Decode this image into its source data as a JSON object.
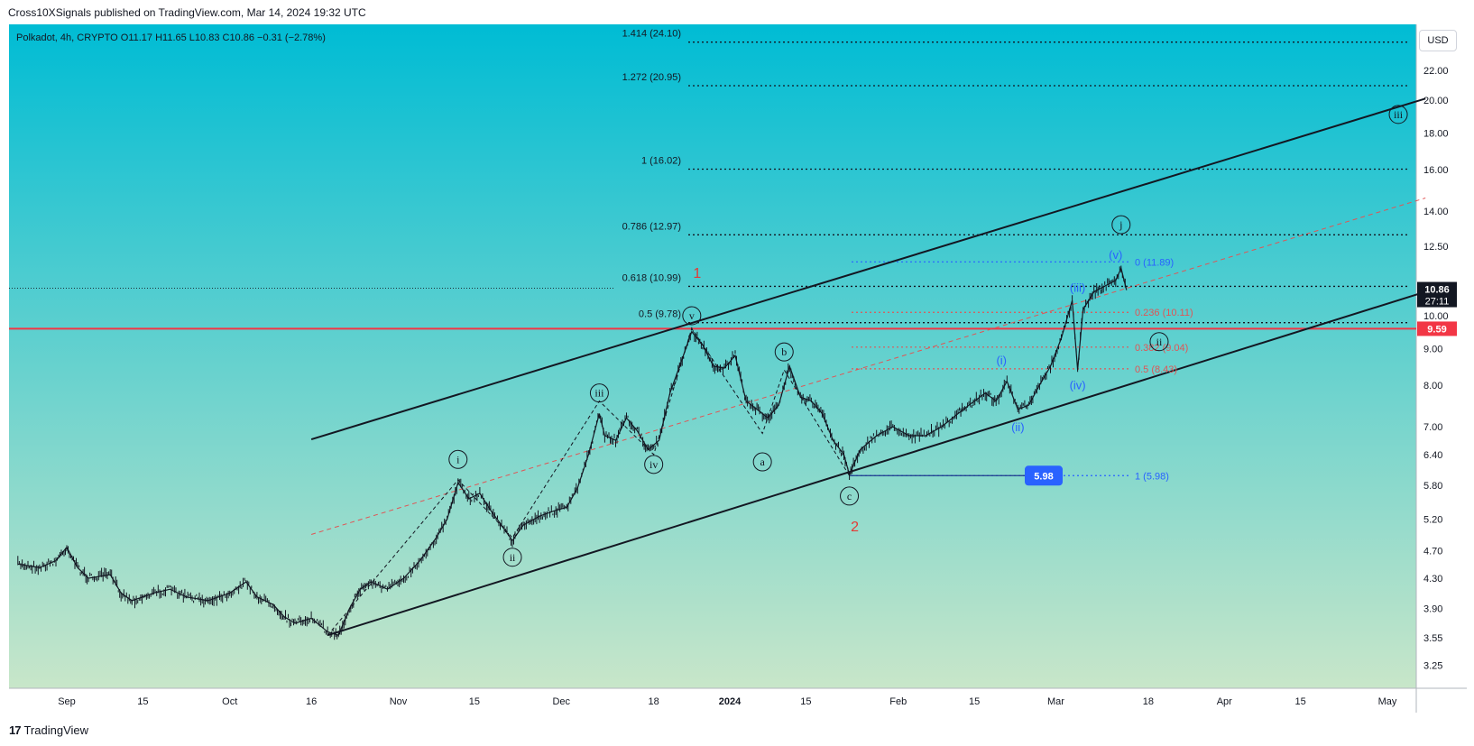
{
  "header": {
    "published": "Cross10XSignals published on TradingView.com, Mar 14, 2024 19:32 UTC"
  },
  "footer": {
    "brand": "TradingView",
    "logo": "17"
  },
  "currency_button": "USD",
  "symbol_info": "Polkadot, 4h, CRYPTO  O11.17  H11.65  L10.83  C10.86  −0.31 (−2.78%)",
  "colors": {
    "bg_top": "#00bcd4",
    "bg_bottom": "#c8e6c9",
    "price_label_bg": "#131722",
    "support_line": "#f23645",
    "blue": "#2962ff",
    "fib_red": "#e05555"
  },
  "chart_data": {
    "type": "line",
    "subtype": "candlestick",
    "symbol": "Polkadot",
    "interval": "4h",
    "ohlc": {
      "open": 11.17,
      "high": 11.65,
      "low": 10.83,
      "close": 10.86,
      "change": -0.31,
      "change_pct": -2.78
    },
    "y_scale": "log",
    "ylim": [
      3.0,
      26.0
    ],
    "x_ticks": [
      {
        "date": "2023-09-01",
        "label": "Sep"
      },
      {
        "date": "2023-09-15",
        "label": "15"
      },
      {
        "date": "2023-10-01",
        "label": "Oct"
      },
      {
        "date": "2023-10-16",
        "label": "16"
      },
      {
        "date": "2023-11-01",
        "label": "Nov"
      },
      {
        "date": "2023-11-15",
        "label": "15"
      },
      {
        "date": "2023-12-01",
        "label": "Dec"
      },
      {
        "date": "2023-12-18",
        "label": "18"
      },
      {
        "date": "2024-01-01",
        "label": "2024"
      },
      {
        "date": "2024-01-15",
        "label": "15"
      },
      {
        "date": "2024-02-01",
        "label": "Feb"
      },
      {
        "date": "2024-02-15",
        "label": "15"
      },
      {
        "date": "2024-03-01",
        "label": "Mar"
      },
      {
        "date": "2024-03-18",
        "label": "18"
      },
      {
        "date": "2024-04-01",
        "label": "Apr"
      },
      {
        "date": "2024-04-15",
        "label": "15"
      },
      {
        "date": "2024-05-01",
        "label": "May"
      }
    ],
    "y_ticks": [
      "3.25",
      "3.55",
      "3.90",
      "4.30",
      "4.70",
      "5.20",
      "5.80",
      "6.40",
      "7.00",
      "8.00",
      "9.00",
      "10.00",
      "12.50",
      "14.00",
      "16.00",
      "18.00",
      "20.00",
      "22.00"
    ],
    "price_path": [
      {
        "x": "2023-08-23",
        "y": 4.5
      },
      {
        "x": "2023-08-27",
        "y": 4.45
      },
      {
        "x": "2023-08-30",
        "y": 4.55
      },
      {
        "x": "2023-09-01",
        "y": 4.75
      },
      {
        "x": "2023-09-03",
        "y": 4.45
      },
      {
        "x": "2023-09-05",
        "y": 4.3
      },
      {
        "x": "2023-09-09",
        "y": 4.35
      },
      {
        "x": "2023-09-11",
        "y": 4.1
      },
      {
        "x": "2023-09-13",
        "y": 4.0
      },
      {
        "x": "2023-09-17",
        "y": 4.1
      },
      {
        "x": "2023-09-20",
        "y": 4.15
      },
      {
        "x": "2023-09-23",
        "y": 4.05
      },
      {
        "x": "2023-09-27",
        "y": 4.0
      },
      {
        "x": "2023-10-01",
        "y": 4.1
      },
      {
        "x": "2023-10-04",
        "y": 4.25
      },
      {
        "x": "2023-10-06",
        "y": 4.05
      },
      {
        "x": "2023-10-09",
        "y": 3.95
      },
      {
        "x": "2023-10-11",
        "y": 3.8
      },
      {
        "x": "2023-10-13",
        "y": 3.72
      },
      {
        "x": "2023-10-16",
        "y": 3.78
      },
      {
        "x": "2023-10-19",
        "y": 3.62
      },
      {
        "x": "2023-10-21",
        "y": 3.58
      },
      {
        "x": "2023-10-23",
        "y": 3.9
      },
      {
        "x": "2023-10-25",
        "y": 4.15
      },
      {
        "x": "2023-10-27",
        "y": 4.25
      },
      {
        "x": "2023-10-30",
        "y": 4.15
      },
      {
        "x": "2023-11-02",
        "y": 4.3
      },
      {
        "x": "2023-11-05",
        "y": 4.55
      },
      {
        "x": "2023-11-08",
        "y": 4.9
      },
      {
        "x": "2023-11-10",
        "y": 5.2
      },
      {
        "x": "2023-11-12",
        "y": 5.85
      },
      {
        "x": "2023-11-14",
        "y": 5.55
      },
      {
        "x": "2023-11-16",
        "y": 5.65
      },
      {
        "x": "2023-11-18",
        "y": 5.35
      },
      {
        "x": "2023-11-20",
        "y": 5.1
      },
      {
        "x": "2023-11-22",
        "y": 4.85
      },
      {
        "x": "2023-11-24",
        "y": 5.1
      },
      {
        "x": "2023-11-27",
        "y": 5.25
      },
      {
        "x": "2023-11-30",
        "y": 5.35
      },
      {
        "x": "2023-12-02",
        "y": 5.4
      },
      {
        "x": "2023-12-04",
        "y": 5.75
      },
      {
        "x": "2023-12-06",
        "y": 6.4
      },
      {
        "x": "2023-12-08",
        "y": 7.3
      },
      {
        "x": "2023-12-09",
        "y": 6.8
      },
      {
        "x": "2023-12-11",
        "y": 6.7
      },
      {
        "x": "2023-12-13",
        "y": 7.2
      },
      {
        "x": "2023-12-15",
        "y": 6.9
      },
      {
        "x": "2023-12-17",
        "y": 6.5
      },
      {
        "x": "2023-12-19",
        "y": 6.7
      },
      {
        "x": "2023-12-21",
        "y": 7.8
      },
      {
        "x": "2023-12-23",
        "y": 8.6
      },
      {
        "x": "2023-12-25",
        "y": 9.5
      },
      {
        "x": "2023-12-27",
        "y": 9.1
      },
      {
        "x": "2023-12-29",
        "y": 8.5
      },
      {
        "x": "2023-12-31",
        "y": 8.45
      },
      {
        "x": "2024-01-02",
        "y": 8.8
      },
      {
        "x": "2024-01-04",
        "y": 7.6
      },
      {
        "x": "2024-01-06",
        "y": 7.4
      },
      {
        "x": "2024-01-08",
        "y": 7.2
      },
      {
        "x": "2024-01-10",
        "y": 7.5
      },
      {
        "x": "2024-01-12",
        "y": 8.5
      },
      {
        "x": "2024-01-14",
        "y": 7.7
      },
      {
        "x": "2024-01-16",
        "y": 7.6
      },
      {
        "x": "2024-01-18",
        "y": 7.3
      },
      {
        "x": "2024-01-20",
        "y": 6.7
      },
      {
        "x": "2024-01-22",
        "y": 6.4
      },
      {
        "x": "2024-01-23",
        "y": 6.0
      },
      {
        "x": "2024-01-25",
        "y": 6.5
      },
      {
        "x": "2024-01-28",
        "y": 6.8
      },
      {
        "x": "2024-01-31",
        "y": 7.0
      },
      {
        "x": "2024-02-03",
        "y": 6.8
      },
      {
        "x": "2024-02-06",
        "y": 6.8
      },
      {
        "x": "2024-02-09",
        "y": 7.0
      },
      {
        "x": "2024-02-12",
        "y": 7.3
      },
      {
        "x": "2024-02-14",
        "y": 7.5
      },
      {
        "x": "2024-02-17",
        "y": 7.8
      },
      {
        "x": "2024-02-19",
        "y": 7.6
      },
      {
        "x": "2024-02-21",
        "y": 8.1
      },
      {
        "x": "2024-02-23",
        "y": 7.4
      },
      {
        "x": "2024-02-25",
        "y": 7.5
      },
      {
        "x": "2024-02-27",
        "y": 8.0
      },
      {
        "x": "2024-02-29",
        "y": 8.5
      },
      {
        "x": "2024-03-02",
        "y": 9.3
      },
      {
        "x": "2024-03-04",
        "y": 10.5
      },
      {
        "x": "2024-03-05",
        "y": 8.4
      },
      {
        "x": "2024-03-06",
        "y": 10.2
      },
      {
        "x": "2024-03-08",
        "y": 10.8
      },
      {
        "x": "2024-03-10",
        "y": 11.0
      },
      {
        "x": "2024-03-12",
        "y": 11.2
      },
      {
        "x": "2024-03-13",
        "y": 11.65
      },
      {
        "x": "2024-03-14",
        "y": 10.86
      }
    ],
    "fib_levels_black": [
      {
        "label": "0.5 (9.78)",
        "value": 9.78
      },
      {
        "label": "0.618 (10.99)",
        "value": 10.99
      },
      {
        "label": "0.786 (12.97)",
        "value": 12.97
      },
      {
        "label": "1 (16.02)",
        "value": 16.02
      },
      {
        "label": "1.272 (20.95)",
        "value": 20.95
      },
      {
        "label": "1.414 (24.10)",
        "value": 24.1
      }
    ],
    "fib_levels_retrace": [
      {
        "label": "0 (11.89)",
        "value": 11.89,
        "color": "blue"
      },
      {
        "label": "0.236 (10.11)",
        "value": 10.11,
        "color": "red"
      },
      {
        "label": "0.382 (9.04)",
        "value": 9.04,
        "color": "red"
      },
      {
        "label": "0.5 (8.43)",
        "value": 8.43,
        "color": "red"
      },
      {
        "label": "1 (5.98)",
        "value": 5.98,
        "color": "blue"
      }
    ],
    "support_level": 9.59,
    "last_price": 10.86,
    "countdown": "27:11",
    "box_label": "5.98",
    "channel_upper": [
      {
        "x": "2023-10-16",
        "y": 6.72
      },
      {
        "x": "2024-05-08",
        "y": 20.1
      }
    ],
    "channel_lower": [
      {
        "x": "2023-10-19",
        "y": 3.58
      },
      {
        "x": "2024-05-08",
        "y": 10.8
      }
    ],
    "channel_mid": [
      {
        "x": "2023-10-16",
        "y": 4.95
      },
      {
        "x": "2024-05-08",
        "y": 14.6
      }
    ],
    "wave_labels": [
      {
        "text": "i",
        "x": "2023-11-12",
        "y": 6.3,
        "style": "circle"
      },
      {
        "text": "ii",
        "x": "2023-11-22",
        "y": 4.6,
        "style": "circle"
      },
      {
        "text": "iii",
        "x": "2023-12-08",
        "y": 7.8,
        "style": "circle"
      },
      {
        "text": "iv",
        "x": "2023-12-18",
        "y": 6.2,
        "style": "circle"
      },
      {
        "text": "v",
        "x": "2023-12-25",
        "y": 10.0,
        "style": "circle"
      },
      {
        "text": "a",
        "x": "2024-01-07",
        "y": 6.25,
        "style": "circle"
      },
      {
        "text": "b",
        "x": "2024-01-11",
        "y": 8.9,
        "style": "circle"
      },
      {
        "text": "c",
        "x": "2024-01-23",
        "y": 5.6,
        "style": "circle"
      },
      {
        "text": "1",
        "x": "2023-12-26",
        "y": 11.3,
        "style": "red"
      },
      {
        "text": "2",
        "x": "2024-01-24",
        "y": 5.0,
        "style": "red"
      },
      {
        "text": "j",
        "x": "2024-03-13",
        "y": 13.4,
        "style": "circle"
      },
      {
        "text": "ii",
        "x": "2024-03-20",
        "y": 9.2,
        "style": "circle"
      },
      {
        "text": "iii",
        "x": "2024-05-03",
        "y": 19.1,
        "style": "circle"
      },
      {
        "text": "(i)",
        "x": "2024-02-20",
        "y": 8.55,
        "style": "blue"
      },
      {
        "text": "(ii)",
        "x": "2024-02-23",
        "y": 6.9,
        "style": "blue"
      },
      {
        "text": "(iii)",
        "x": "2024-03-05",
        "y": 10.8,
        "style": "blue"
      },
      {
        "text": "(iv)",
        "x": "2024-03-05",
        "y": 7.9,
        "style": "blue"
      },
      {
        "text": "(v)",
        "x": "2024-03-12",
        "y": 12.0,
        "style": "blue"
      }
    ],
    "impulse_path": [
      {
        "x": "2023-10-19",
        "y": 3.58
      },
      {
        "x": "2023-11-12",
        "y": 5.9
      },
      {
        "x": "2023-11-22",
        "y": 4.9
      },
      {
        "x": "2023-12-08",
        "y": 7.6
      },
      {
        "x": "2023-12-18",
        "y": 6.4
      },
      {
        "x": "2023-12-25",
        "y": 9.6
      },
      {
        "x": "2024-01-07",
        "y": 6.85
      },
      {
        "x": "2024-01-11",
        "y": 8.4
      },
      {
        "x": "2024-01-23",
        "y": 5.98
      }
    ]
  }
}
